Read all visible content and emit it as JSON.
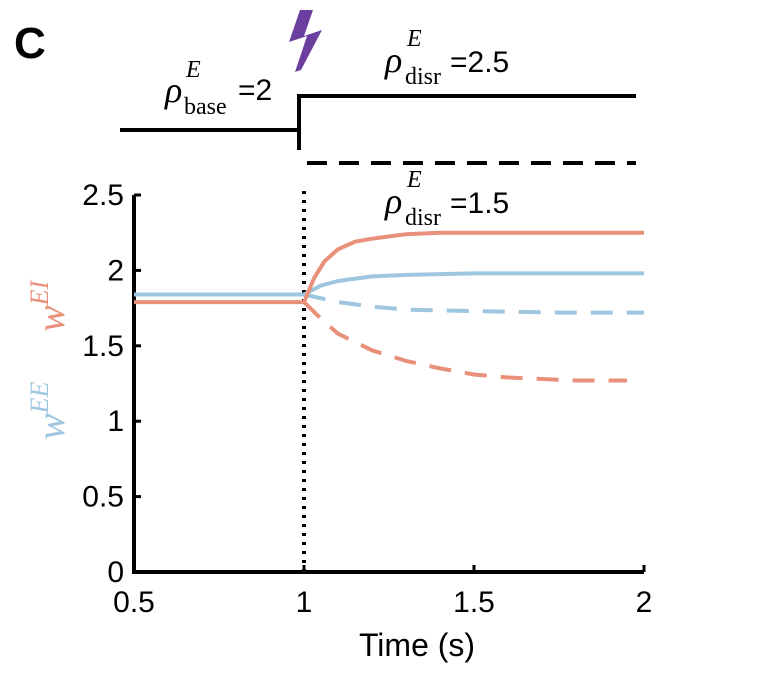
{
  "panel_letter": "C",
  "colors": {
    "wEE": "#9ec6e0",
    "wEI": "#e9907a",
    "axis": "#000000",
    "lightning": "#6b3fa0"
  },
  "input_schematic": {
    "base_label": {
      "symbol": "ρ",
      "sup": "E",
      "sub": "base",
      "value": "=2"
    },
    "disr_high_label": {
      "symbol": "ρ",
      "sup": "E",
      "sub": "disr",
      "value": "=2.5"
    },
    "disr_low_label": {
      "symbol": "ρ",
      "sup": "E",
      "sub": "disr",
      "value": "=1.5"
    },
    "icon": "lightning-bolt-icon"
  },
  "chart_data": {
    "type": "line",
    "title": "",
    "xlabel": "Time (s)",
    "ylabel_parts": [
      {
        "base": "w",
        "sup": "EE",
        "color_key": "wEE"
      },
      {
        "base": "w",
        "sup": "EI",
        "color_key": "wEI"
      }
    ],
    "xlim": [
      0.5,
      2
    ],
    "ylim": [
      0,
      2.5
    ],
    "xticks": [
      "0.5",
      "1",
      "1.5",
      "2"
    ],
    "yticks": [
      "0",
      "0.5",
      "1",
      "1.5",
      "2",
      "2.5"
    ],
    "event_line_x": 1,
    "grid": false,
    "series": [
      {
        "style": "solid",
        "color_key": "wEE",
        "x": [
          0.5,
          1.0,
          1.05,
          1.1,
          1.2,
          1.3,
          1.5,
          1.75,
          2.0
        ],
        "y": [
          1.84,
          1.84,
          1.9,
          1.93,
          1.96,
          1.97,
          1.98,
          1.98,
          1.98
        ]
      },
      {
        "style": "dashed",
        "color_key": "wEE",
        "x": [
          1.0,
          1.1,
          1.2,
          1.3,
          1.5,
          1.75,
          2.0
        ],
        "y": [
          1.84,
          1.79,
          1.76,
          1.74,
          1.73,
          1.72,
          1.72
        ]
      },
      {
        "style": "solid",
        "color_key": "wEI",
        "x": [
          0.5,
          1.0,
          1.03,
          1.06,
          1.1,
          1.15,
          1.2,
          1.3,
          1.4,
          1.5,
          1.75,
          2.0
        ],
        "y": [
          1.79,
          1.79,
          1.95,
          2.06,
          2.14,
          2.19,
          2.21,
          2.24,
          2.25,
          2.25,
          2.25,
          2.25
        ]
      },
      {
        "style": "dashed",
        "color_key": "wEI",
        "x": [
          1.0,
          1.05,
          1.1,
          1.2,
          1.3,
          1.4,
          1.5,
          1.6,
          1.7,
          1.8,
          1.95
        ],
        "y": [
          1.79,
          1.68,
          1.58,
          1.47,
          1.4,
          1.35,
          1.31,
          1.29,
          1.28,
          1.27,
          1.27
        ]
      }
    ]
  }
}
